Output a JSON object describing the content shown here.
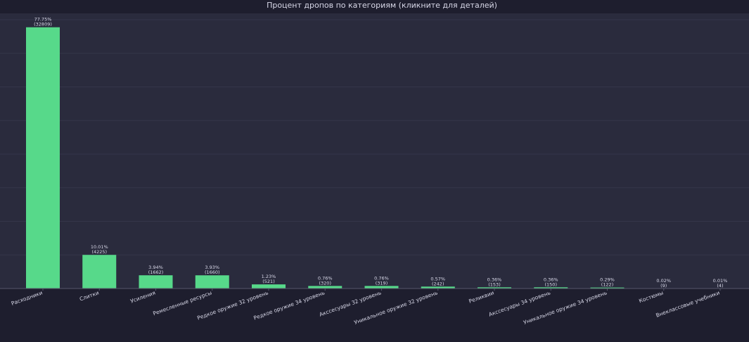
{
  "colors": {
    "page_bg": "#1e1e2e",
    "plot_bg": "#2a2b3d",
    "grid": "#34364a",
    "bar": "#57d98a",
    "text": "#d8d8e8",
    "axis": "#55576a"
  },
  "chart_data": {
    "type": "bar",
    "title": "Процент дропов по категориям  (кликните для деталей)",
    "xlabel": "",
    "ylabel": "",
    "ylim": [
      0,
      80
    ],
    "grid": true,
    "categories": [
      "Расходники",
      "Слитки",
      "Усиления",
      "Ремесленные ресурсы",
      "Редкое оружие 32 уровень",
      "Редкое оружие 34 уровень",
      "Акссесуары 32 уровень",
      "Уникальное оружие 32 уровень",
      "Реликвии",
      "Акссесуары 34 уровень",
      "Уникальное оружие 34 уровень",
      "Костюмы",
      "Внеклассовые учебники"
    ],
    "values": [
      77.75,
      10.01,
      3.94,
      3.93,
      1.23,
      0.76,
      0.76,
      0.57,
      0.36,
      0.36,
      0.29,
      0.02,
      0.01
    ],
    "percent_labels": [
      "77.75%",
      "10.01%",
      "3.94%",
      "3.93%",
      "1.23%",
      "0.76%",
      "0.76%",
      "0.57%",
      "0.36%",
      "0.36%",
      "0.29%",
      "0.02%",
      "0.01%"
    ],
    "count_labels": [
      "(32809)",
      "(4225)",
      "(1662)",
      "(1660)",
      "(521)",
      "(320)",
      "(319)",
      "(242)",
      "(153)",
      "(150)",
      "(122)",
      "(9)",
      "(4)"
    ]
  }
}
